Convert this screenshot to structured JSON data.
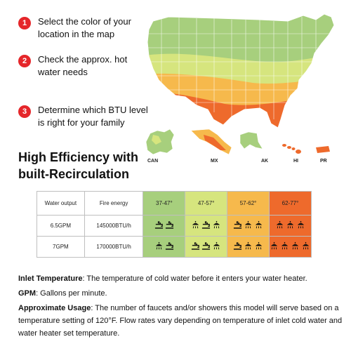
{
  "steps": [
    {
      "num": "1",
      "text": "Select the color of your location in the map"
    },
    {
      "num": "2",
      "text": "Check the approx. hot water needs"
    },
    {
      "num": "3",
      "text": "Determine which BTU level is right for your family"
    }
  ],
  "headline": "High Efficiency with built-Recirculation",
  "map": {
    "labels": [
      "CAN",
      "MX",
      "AK",
      "HI",
      "PR"
    ],
    "colors": {
      "green": "#a7cf7d",
      "yellow_green": "#d6e57e",
      "orange": "#f6b94c",
      "red": "#ee6a2c"
    }
  },
  "table": {
    "headers": [
      "Water output",
      "Fire energy",
      "37-47°",
      "47-57°",
      "57-62°",
      "62-77°"
    ],
    "rows": [
      {
        "output": "6.5GPM",
        "energy": "145000BTU/h",
        "icons": [
          [
            "faucet",
            "faucet"
          ],
          [
            "shower",
            "faucet",
            "shower"
          ],
          [
            "faucet",
            "shower",
            "shower"
          ],
          [
            "shower",
            "shower",
            "shower"
          ]
        ]
      },
      {
        "output": "7GPM",
        "energy": "170000BTU/h",
        "icons": [
          [
            "shower",
            "faucet"
          ],
          [
            "faucet",
            "faucet",
            "shower"
          ],
          [
            "faucet",
            "shower",
            "shower"
          ],
          [
            "shower",
            "shower",
            "shower",
            "shower"
          ]
        ]
      }
    ]
  },
  "notes": {
    "inlet_label": "Inlet Temperature",
    "inlet_text": ":  The temperature of cold water before it enters your water heater.",
    "gpm_label": "GPM",
    "gpm_text": ":  Gallons per minute.",
    "usage_label": "Approximate Usage",
    "usage_text": ":  The number of  faucets and/or showers this model will serve based on a temperature setting of 120°F. Flow rates vary depending on temperature of inlet cold water and water heater set temperature."
  }
}
